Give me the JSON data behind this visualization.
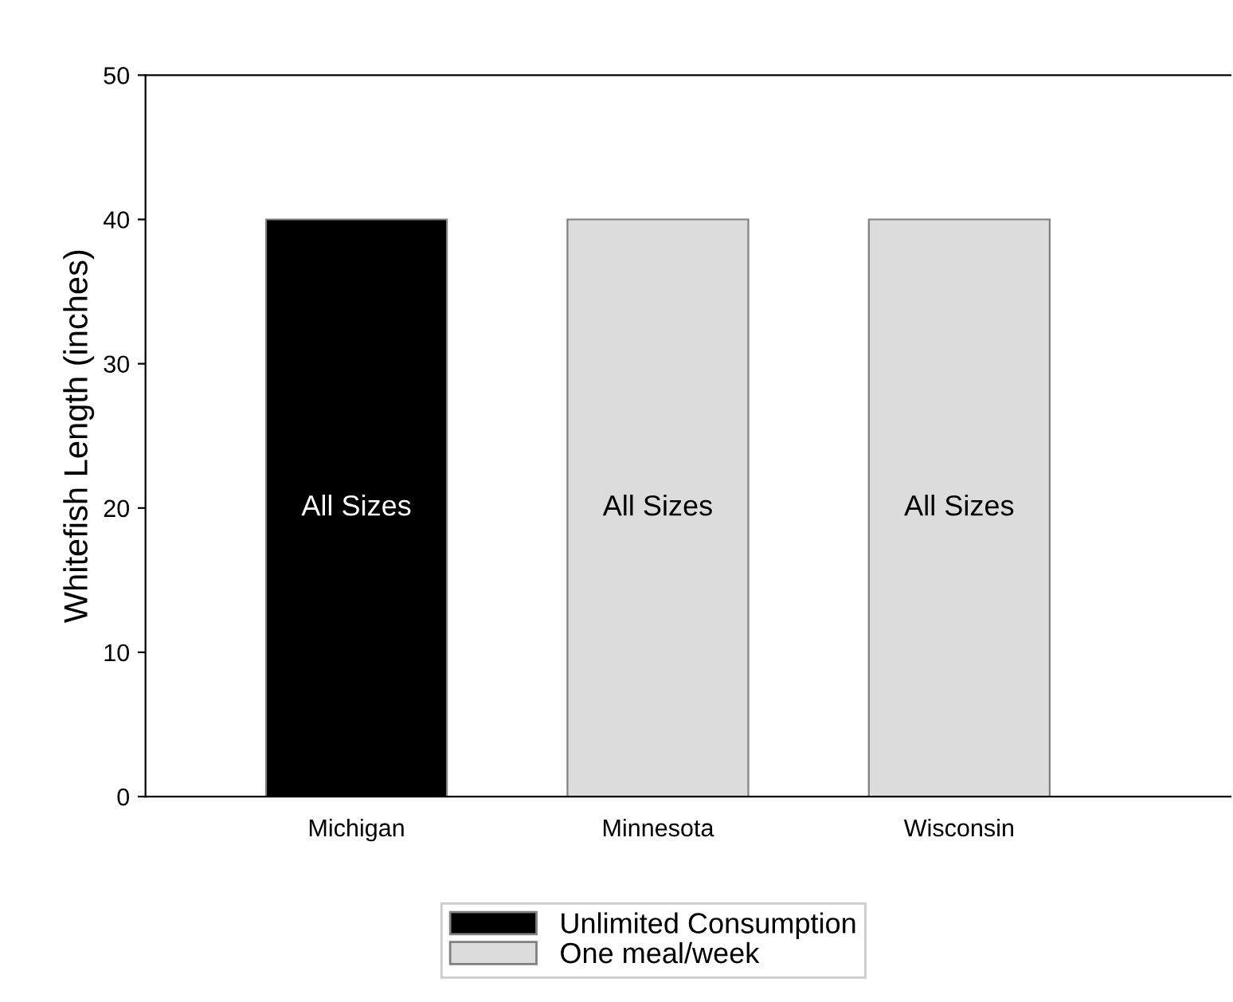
{
  "chart_data": {
    "type": "bar",
    "ylabel": "Whitefish Length (inches)",
    "categories": [
      "Michigan",
      "Minnesota",
      "Wisconsin"
    ],
    "series": [
      {
        "name": "Unlimited Consumption",
        "color": "#000000",
        "values": [
          40,
          null,
          null
        ]
      },
      {
        "name": "One meal/week",
        "color": "#dcdcdc",
        "values": [
          null,
          40,
          40
        ]
      }
    ],
    "ylim": [
      0,
      50
    ],
    "yticks": [
      0,
      10,
      20,
      30,
      40,
      50
    ],
    "grid": false,
    "legend": "bottom",
    "annotations": [
      "All Sizes",
      "All Sizes",
      "All Sizes"
    ]
  }
}
